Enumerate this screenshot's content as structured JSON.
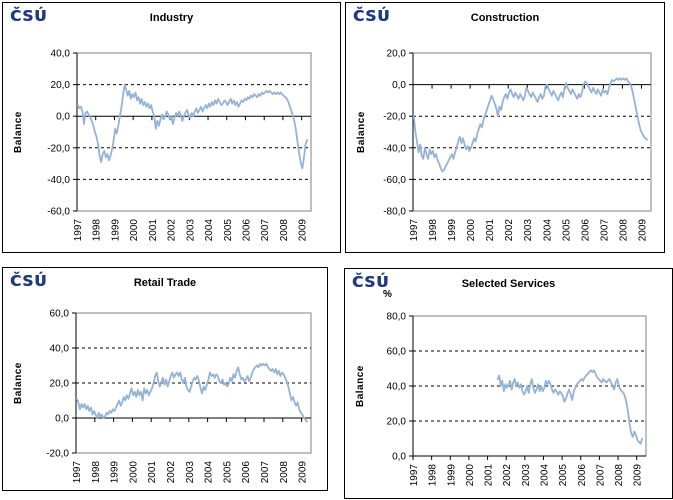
{
  "logo": {
    "text": "ČSÚ",
    "color": "#1F3A7D"
  },
  "colors": {
    "line": "#95B3D7",
    "grid": "#000000",
    "plot_border": "#808080",
    "axis": "#000000"
  },
  "chart_data": [
    {
      "type": "line",
      "title": "Industry",
      "ylabel": "Balance",
      "unit": "",
      "ylim": [
        -60,
        40
      ],
      "grid": "dashed horizontal, solid zero axis",
      "legend": "none",
      "yticks": [
        {
          "v": 40,
          "label": "40,0"
        },
        {
          "v": 20,
          "label": "20,0"
        },
        {
          "v": 0,
          "label": "0,0"
        },
        {
          "v": -20,
          "label": "-20,0"
        },
        {
          "v": -40,
          "label": "-40,0"
        },
        {
          "v": -60,
          "label": "-60,0"
        }
      ],
      "x_year_labels": [
        "1997",
        "1998",
        "1999",
        "2000",
        "2001",
        "2002",
        "2003",
        "2004",
        "2005",
        "2006",
        "2007",
        "2008",
        "2009"
      ],
      "x_start": "1997-01",
      "months_total": 150,
      "series": [
        {
          "name": "Balance",
          "start_index": 0,
          "values": [
            7,
            5,
            6,
            3,
            -5,
            2,
            3,
            1,
            -1,
            -3,
            -6,
            -10,
            -13,
            -18,
            -25,
            -29,
            -24,
            -22,
            -26,
            -24,
            -28,
            -25,
            -21,
            -15,
            -8,
            -11,
            -6,
            0,
            6,
            13,
            20,
            17,
            13,
            16,
            11,
            14,
            12,
            15,
            10,
            12,
            8,
            11,
            7,
            9,
            6,
            8,
            5,
            7,
            3,
            0,
            -8,
            -3,
            -6,
            -2,
            1,
            -2,
            0,
            3,
            1,
            -2,
            0,
            -5,
            -1,
            2,
            0,
            3,
            1,
            -3,
            0,
            2,
            4,
            1,
            -1,
            2,
            0,
            3,
            5,
            2,
            4,
            6,
            3,
            5,
            7,
            5,
            8,
            6,
            9,
            7,
            10,
            8,
            11,
            9,
            7,
            8,
            10,
            9,
            7,
            9,
            11,
            8,
            10,
            7,
            9,
            6,
            8,
            10,
            9,
            11,
            10,
            12,
            11,
            13,
            12,
            14,
            13,
            12,
            14,
            13,
            15,
            14,
            15,
            16,
            15,
            16,
            15,
            14,
            15,
            14,
            15,
            14,
            15,
            14,
            13,
            12,
            11,
            9,
            6,
            3,
            0,
            -4,
            -10,
            -17,
            -24,
            -30,
            -33,
            -26,
            -18,
            -15
          ]
        }
      ]
    },
    {
      "type": "line",
      "title": "Construction",
      "ylabel": "Balance",
      "unit": "",
      "ylim": [
        -80,
        20
      ],
      "grid": "dashed horizontal, solid zero axis",
      "legend": "none",
      "yticks": [
        {
          "v": 20,
          "label": "20,0"
        },
        {
          "v": 0,
          "label": "0,0"
        },
        {
          "v": -20,
          "label": "-20,0"
        },
        {
          "v": -40,
          "label": "-40,0"
        },
        {
          "v": -60,
          "label": "-60,0"
        },
        {
          "v": -80,
          "label": "-80,0"
        }
      ],
      "x_year_labels": [
        "1997",
        "1998",
        "1999",
        "2000",
        "2001",
        "2002",
        "2003",
        "2004",
        "2005",
        "2006",
        "2007",
        "2008",
        "2009"
      ],
      "x_start": "1997-01",
      "months_total": 150,
      "series": [
        {
          "name": "Balance",
          "start_index": 0,
          "values": [
            -20,
            -30,
            -36,
            -43,
            -38,
            -45,
            -47,
            -40,
            -44,
            -47,
            -41,
            -44,
            -42,
            -46,
            -44,
            -48,
            -50,
            -53,
            -55,
            -54,
            -52,
            -50,
            -48,
            -46,
            -44,
            -47,
            -43,
            -40,
            -36,
            -33,
            -37,
            -34,
            -38,
            -41,
            -39,
            -42,
            -40,
            -37,
            -34,
            -36,
            -31,
            -28,
            -25,
            -27,
            -22,
            -19,
            -16,
            -13,
            -10,
            -7,
            -9,
            -12,
            -15,
            -20,
            -14,
            -16,
            -11,
            -8,
            -6,
            -9,
            -5,
            -3,
            -6,
            -8,
            -5,
            -7,
            -9,
            -6,
            -8,
            -10,
            -7,
            -2,
            -4,
            -6,
            -8,
            -5,
            -7,
            -9,
            -11,
            -8,
            -6,
            -9,
            -7,
            -1,
            0,
            -3,
            -5,
            -7,
            -4,
            -6,
            -8,
            -10,
            -7,
            -5,
            -8,
            -2,
            1,
            -2,
            -4,
            -6,
            -3,
            -5,
            -7,
            -9,
            -6,
            -8,
            -5,
            0,
            2,
            1,
            -1,
            -3,
            -5,
            -2,
            -4,
            -6,
            -3,
            -5,
            -7,
            -3,
            -5,
            -4,
            -6,
            -2,
            1,
            3,
            2,
            3,
            4,
            3,
            4,
            3,
            4,
            3,
            4,
            2,
            1,
            -1,
            -5,
            -10,
            -15,
            -20,
            -25,
            -29,
            -31,
            -33,
            -34,
            -35
          ]
        }
      ]
    },
    {
      "type": "line",
      "title": "Retail Trade",
      "ylabel": "Balance",
      "unit": "",
      "ylim": [
        -20,
        60
      ],
      "grid": "dashed horizontal, solid zero axis",
      "legend": "none",
      "yticks": [
        {
          "v": 60,
          "label": "60,0"
        },
        {
          "v": 40,
          "label": "40,0"
        },
        {
          "v": 20,
          "label": "20,0"
        },
        {
          "v": 0,
          "label": "0,0"
        },
        {
          "v": -20,
          "label": "-20,0"
        }
      ],
      "x_year_labels": [
        "1997",
        "1998",
        "1999",
        "2000",
        "2001",
        "2002",
        "2003",
        "2004",
        "2005",
        "2006",
        "2007",
        "2008",
        "2009"
      ],
      "x_start": "1997-01",
      "months_total": 150,
      "series": [
        {
          "name": "Balance",
          "start_index": 0,
          "values": [
            11,
            9,
            5,
            8,
            6,
            8,
            5,
            7,
            4,
            6,
            2,
            4,
            2,
            0,
            3,
            1,
            2,
            0,
            1,
            3,
            2,
            4,
            3,
            5,
            4,
            6,
            8,
            10,
            7,
            9,
            12,
            10,
            13,
            11,
            14,
            17,
            13,
            15,
            12,
            16,
            13,
            15,
            10,
            17,
            14,
            16,
            13,
            15,
            17,
            20,
            24,
            26,
            21,
            18,
            20,
            23,
            19,
            22,
            18,
            21,
            24,
            26,
            23,
            25,
            26,
            24,
            26,
            22,
            20,
            23,
            18,
            16,
            15,
            18,
            21,
            23,
            22,
            24,
            21,
            17,
            14,
            18,
            16,
            19,
            22,
            26,
            24,
            25,
            23,
            25,
            24,
            21,
            20,
            22,
            19,
            20,
            18,
            20,
            23,
            21,
            25,
            23,
            27,
            29,
            25,
            22,
            23,
            21,
            22,
            24,
            21,
            23,
            26,
            28,
            29,
            30,
            29,
            31,
            30,
            31,
            30,
            31,
            29,
            28,
            27,
            28,
            26,
            28,
            25,
            27,
            24,
            26,
            25,
            23,
            21,
            18,
            14,
            10,
            12,
            9,
            7,
            9,
            5,
            3,
            2,
            0,
            -1,
            -2
          ]
        }
      ]
    },
    {
      "type": "line",
      "title": "Selected Services",
      "ylabel": "Balance",
      "unit": "%",
      "ylim": [
        0,
        80
      ],
      "grid": "dashed horizontal, solid zero axis",
      "legend": "none",
      "yticks": [
        {
          "v": 80,
          "label": "80,0"
        },
        {
          "v": 60,
          "label": "60,0"
        },
        {
          "v": 40,
          "label": "40,0"
        },
        {
          "v": 20,
          "label": "20,0"
        },
        {
          "v": 0,
          "label": "0,0"
        }
      ],
      "x_year_labels": [
        "1997",
        "1998",
        "1999",
        "2000",
        "2001",
        "2002",
        "2003",
        "2004",
        "2005",
        "2006",
        "2007",
        "2008",
        "2009"
      ],
      "x_start": "1997-01",
      "months_total": 150,
      "series": [
        {
          "name": "Balance",
          "start_index": 54,
          "values": [
            44,
            46,
            40,
            43,
            37,
            41,
            39,
            41,
            43,
            38,
            42,
            44,
            40,
            42,
            39,
            41,
            37,
            35,
            37,
            40,
            36,
            41,
            44,
            39,
            36,
            38,
            41,
            37,
            40,
            37,
            39,
            43,
            41,
            43,
            41,
            38,
            36,
            38,
            37,
            35,
            37,
            36,
            34,
            31,
            33,
            36,
            38,
            35,
            32,
            37,
            39,
            41,
            42,
            43,
            44,
            43,
            45,
            46,
            47,
            48,
            49,
            48,
            49,
            47,
            45,
            44,
            43,
            42,
            44,
            43,
            42,
            43,
            44,
            42,
            40,
            38,
            42,
            44,
            40,
            38,
            37,
            36,
            34,
            30,
            25,
            18,
            13,
            11,
            14,
            12,
            9,
            8,
            7,
            10
          ]
        }
      ]
    }
  ]
}
